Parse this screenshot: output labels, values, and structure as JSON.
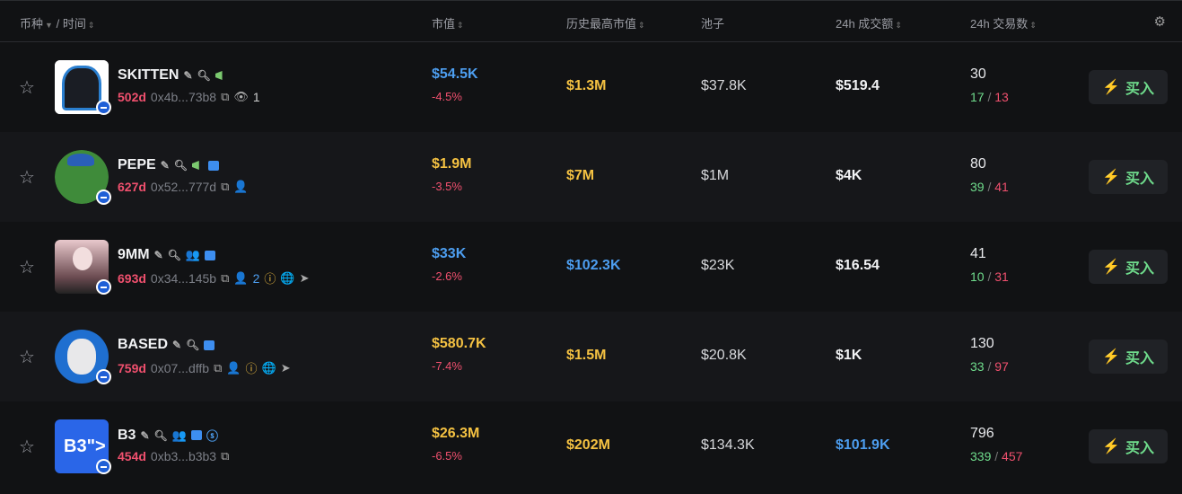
{
  "header": {
    "coin": "币种",
    "sep": "/",
    "time": "时间",
    "mcap": "市值",
    "ath": "历史最高市值",
    "pool": "池子",
    "vol": "24h 成交额",
    "tx": "24h 交易数"
  },
  "buy_label": "买入",
  "colors": {
    "positive": "#6fdc8c",
    "negative": "#f0506e",
    "blue": "#4d9ef0",
    "yellow": "#f5c242"
  },
  "rows": [
    {
      "name": "SKITTEN",
      "age": "502d",
      "addr": "0x4b...73b8",
      "holders": "1",
      "mcap": "$54.5K",
      "mcap_color": "blue",
      "change": "-4.5%",
      "ath": "$1.3M",
      "ath_color": "yellow",
      "pool": "$37.8K",
      "vol": "$519.4",
      "vol_color": "white",
      "tx": "30",
      "buys": "17",
      "sells": "13"
    },
    {
      "name": "PEPE",
      "age": "627d",
      "addr": "0x52...777d",
      "holders": "",
      "mcap": "$1.9M",
      "mcap_color": "yellow",
      "change": "-3.5%",
      "ath": "$7M",
      "ath_color": "yellow",
      "pool": "$1M",
      "vol": "$4K",
      "vol_color": "white",
      "tx": "80",
      "buys": "39",
      "sells": "41"
    },
    {
      "name": "9MM",
      "age": "693d",
      "addr": "0x34...145b",
      "holders": "2",
      "mcap": "$33K",
      "mcap_color": "blue",
      "change": "-2.6%",
      "ath": "$102.3K",
      "ath_color": "blue",
      "pool": "$23K",
      "vol": "$16.54",
      "vol_color": "white",
      "tx": "41",
      "buys": "10",
      "sells": "31"
    },
    {
      "name": "BASED",
      "age": "759d",
      "addr": "0x07...dffb",
      "holders": "",
      "mcap": "$580.7K",
      "mcap_color": "yellow",
      "change": "-7.4%",
      "ath": "$1.5M",
      "ath_color": "yellow",
      "pool": "$20.8K",
      "vol": "$1K",
      "vol_color": "white",
      "tx": "130",
      "buys": "33",
      "sells": "97"
    },
    {
      "name": "B3",
      "age": "454d",
      "addr": "0xb3...b3b3",
      "holders": "",
      "mcap": "$26.3M",
      "mcap_color": "yellow",
      "change": "-6.5%",
      "ath": "$202M",
      "ath_color": "yellow",
      "pool": "$134.3K",
      "vol": "$101.9K",
      "vol_color": "blue",
      "tx": "796",
      "buys": "339",
      "sells": "457"
    }
  ]
}
